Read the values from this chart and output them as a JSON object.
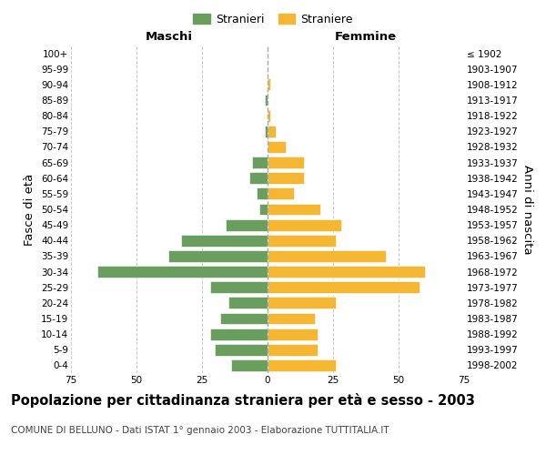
{
  "age_groups": [
    "0-4",
    "5-9",
    "10-14",
    "15-19",
    "20-24",
    "25-29",
    "30-34",
    "35-39",
    "40-44",
    "45-49",
    "50-54",
    "55-59",
    "60-64",
    "65-69",
    "70-74",
    "75-79",
    "80-84",
    "85-89",
    "90-94",
    "95-99",
    "100+"
  ],
  "birth_years": [
    "1998-2002",
    "1993-1997",
    "1988-1992",
    "1983-1987",
    "1978-1982",
    "1973-1977",
    "1968-1972",
    "1963-1967",
    "1958-1962",
    "1953-1957",
    "1948-1952",
    "1943-1947",
    "1938-1942",
    "1933-1937",
    "1928-1932",
    "1923-1927",
    "1918-1922",
    "1913-1917",
    "1908-1912",
    "1903-1907",
    "≤ 1902"
  ],
  "males": [
    14,
    20,
    22,
    18,
    15,
    22,
    65,
    38,
    33,
    16,
    3,
    4,
    7,
    6,
    0,
    1,
    0,
    1,
    0,
    0,
    0
  ],
  "females": [
    26,
    19,
    19,
    18,
    26,
    58,
    60,
    45,
    26,
    28,
    20,
    10,
    14,
    14,
    7,
    3,
    1,
    0,
    1,
    0,
    0
  ],
  "male_color": "#6a9e5f",
  "female_color": "#f5b731",
  "center_line_color": "#aaaaaa",
  "grid_color": "#cccccc",
  "background_color": "#ffffff",
  "title": "Popolazione per cittadinanza straniera per età e sesso - 2003",
  "subtitle": "COMUNE DI BELLUNO - Dati ISTAT 1° gennaio 2003 - Elaborazione TUTTITALIA.IT",
  "xlabel_left": "Maschi",
  "xlabel_right": "Femmine",
  "ylabel_left": "Fasce di età",
  "ylabel_right": "Anni di nascita",
  "legend_stranieri": "Stranieri",
  "legend_straniere": "Straniere",
  "xlim": 75,
  "title_fontsize": 10.5,
  "subtitle_fontsize": 7.5,
  "tick_fontsize": 7.5,
  "label_fontsize": 9.5
}
